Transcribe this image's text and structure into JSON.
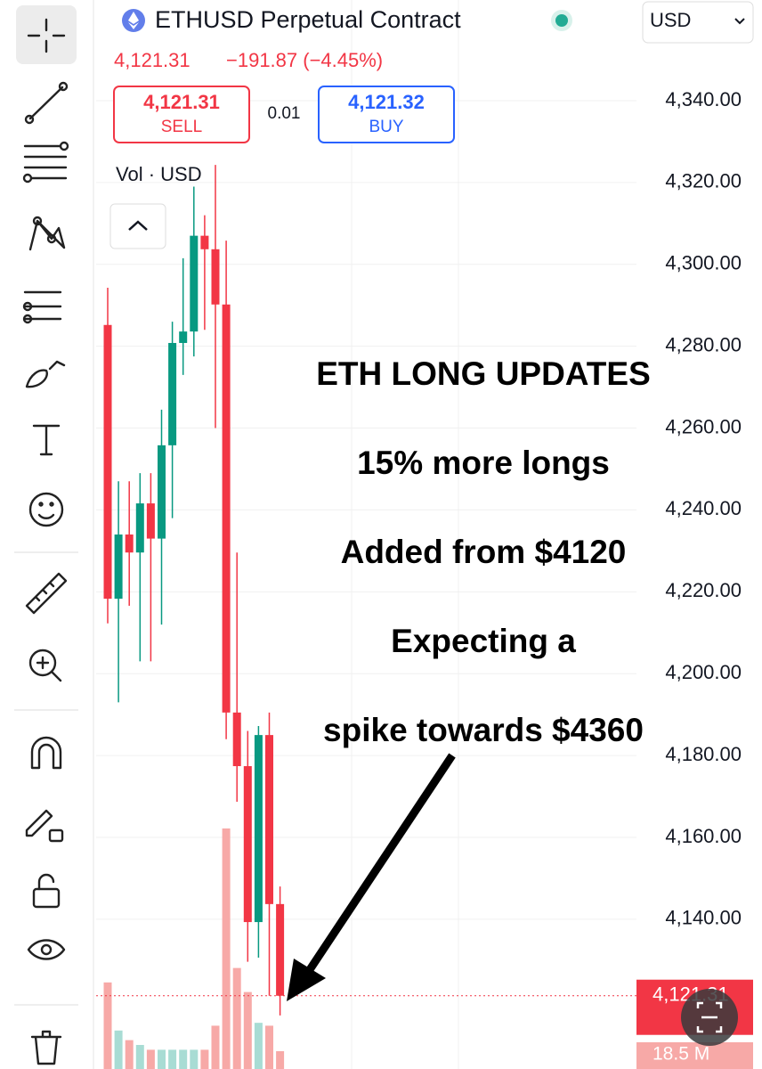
{
  "header": {
    "symbol": "ETHUSD Perpetual Contract",
    "price": "4,121.31",
    "change": "−191.87 (−4.45%)",
    "sell_price": "4,121.31",
    "sell_label": "SELL",
    "spread": "0.01",
    "buy_price": "4,121.32",
    "buy_label": "BUY",
    "volume_label": "Vol · USD",
    "currency": "USD"
  },
  "chart_data": {
    "type": "candlestick",
    "open": [
      4285.2,
      4218.3,
      4234.0,
      4229.6,
      4241.6,
      4233.0,
      4255.8,
      4280.8,
      4283.6,
      4307.0,
      4303.7,
      4290.2,
      4190.5,
      4177.4,
      4139.3,
      4185.0,
      4143.7
    ],
    "high": [
      4294.3,
      4247.0,
      4247.0,
      4249.0,
      4249.0,
      4264.5,
      4286.0,
      4301.5,
      4319.0,
      4312.0,
      4324.3,
      4305.8,
      4229.6,
      4186.0,
      4187.2,
      4190.5,
      4148.0
    ],
    "low": [
      4212.3,
      4193.0,
      4216.6,
      4203.0,
      4203.0,
      4212.0,
      4238.0,
      4273.0,
      4277.5,
      4284.0,
      4260.0,
      4184.0,
      4168.7,
      4129.6,
      4130.6,
      4121.3,
      4116.5
    ],
    "close": [
      4218.3,
      4234.0,
      4229.6,
      4241.6,
      4233.0,
      4255.8,
      4280.8,
      4283.6,
      4307.0,
      4303.7,
      4290.2,
      4190.5,
      4177.4,
      4139.3,
      4185.0,
      4143.7,
      4121.3
    ],
    "volume": [
      90,
      40,
      30,
      25,
      20,
      20,
      20,
      20,
      20,
      20,
      45,
      250,
      105,
      80,
      48,
      45,
      18.5
    ],
    "last_volume_label": "18.5 M",
    "up_color": "#089981",
    "down_color": "#f23645",
    "up_volume_color": "#a8dcd4",
    "down_volume_color": "#f7a9a7",
    "last_price": {
      "value": 4121.31,
      "label": "4,121.31"
    },
    "ylim": [
      4103.4,
      4364.6
    ],
    "yticks": [
      {
        "value": 4340,
        "label": "4,340.00"
      },
      {
        "value": 4320,
        "label": "4,320.00"
      },
      {
        "value": 4300,
        "label": "4,300.00"
      },
      {
        "value": 4280,
        "label": "4,280.00"
      },
      {
        "value": 4260,
        "label": "4,260.00"
      },
      {
        "value": 4240,
        "label": "4,240.00"
      },
      {
        "value": 4220,
        "label": "4,220.00"
      },
      {
        "value": 4200,
        "label": "4,200.00"
      },
      {
        "value": 4180,
        "label": "4,180.00"
      },
      {
        "value": 4160,
        "label": "4,160.00"
      },
      {
        "value": 4140,
        "label": "4,140.00"
      }
    ],
    "grid": true,
    "annotations": [
      "ETH LONG UPDATES",
      "15% more longs",
      "Added from $4120",
      "Expecting a",
      "spike towards $4360"
    ]
  }
}
